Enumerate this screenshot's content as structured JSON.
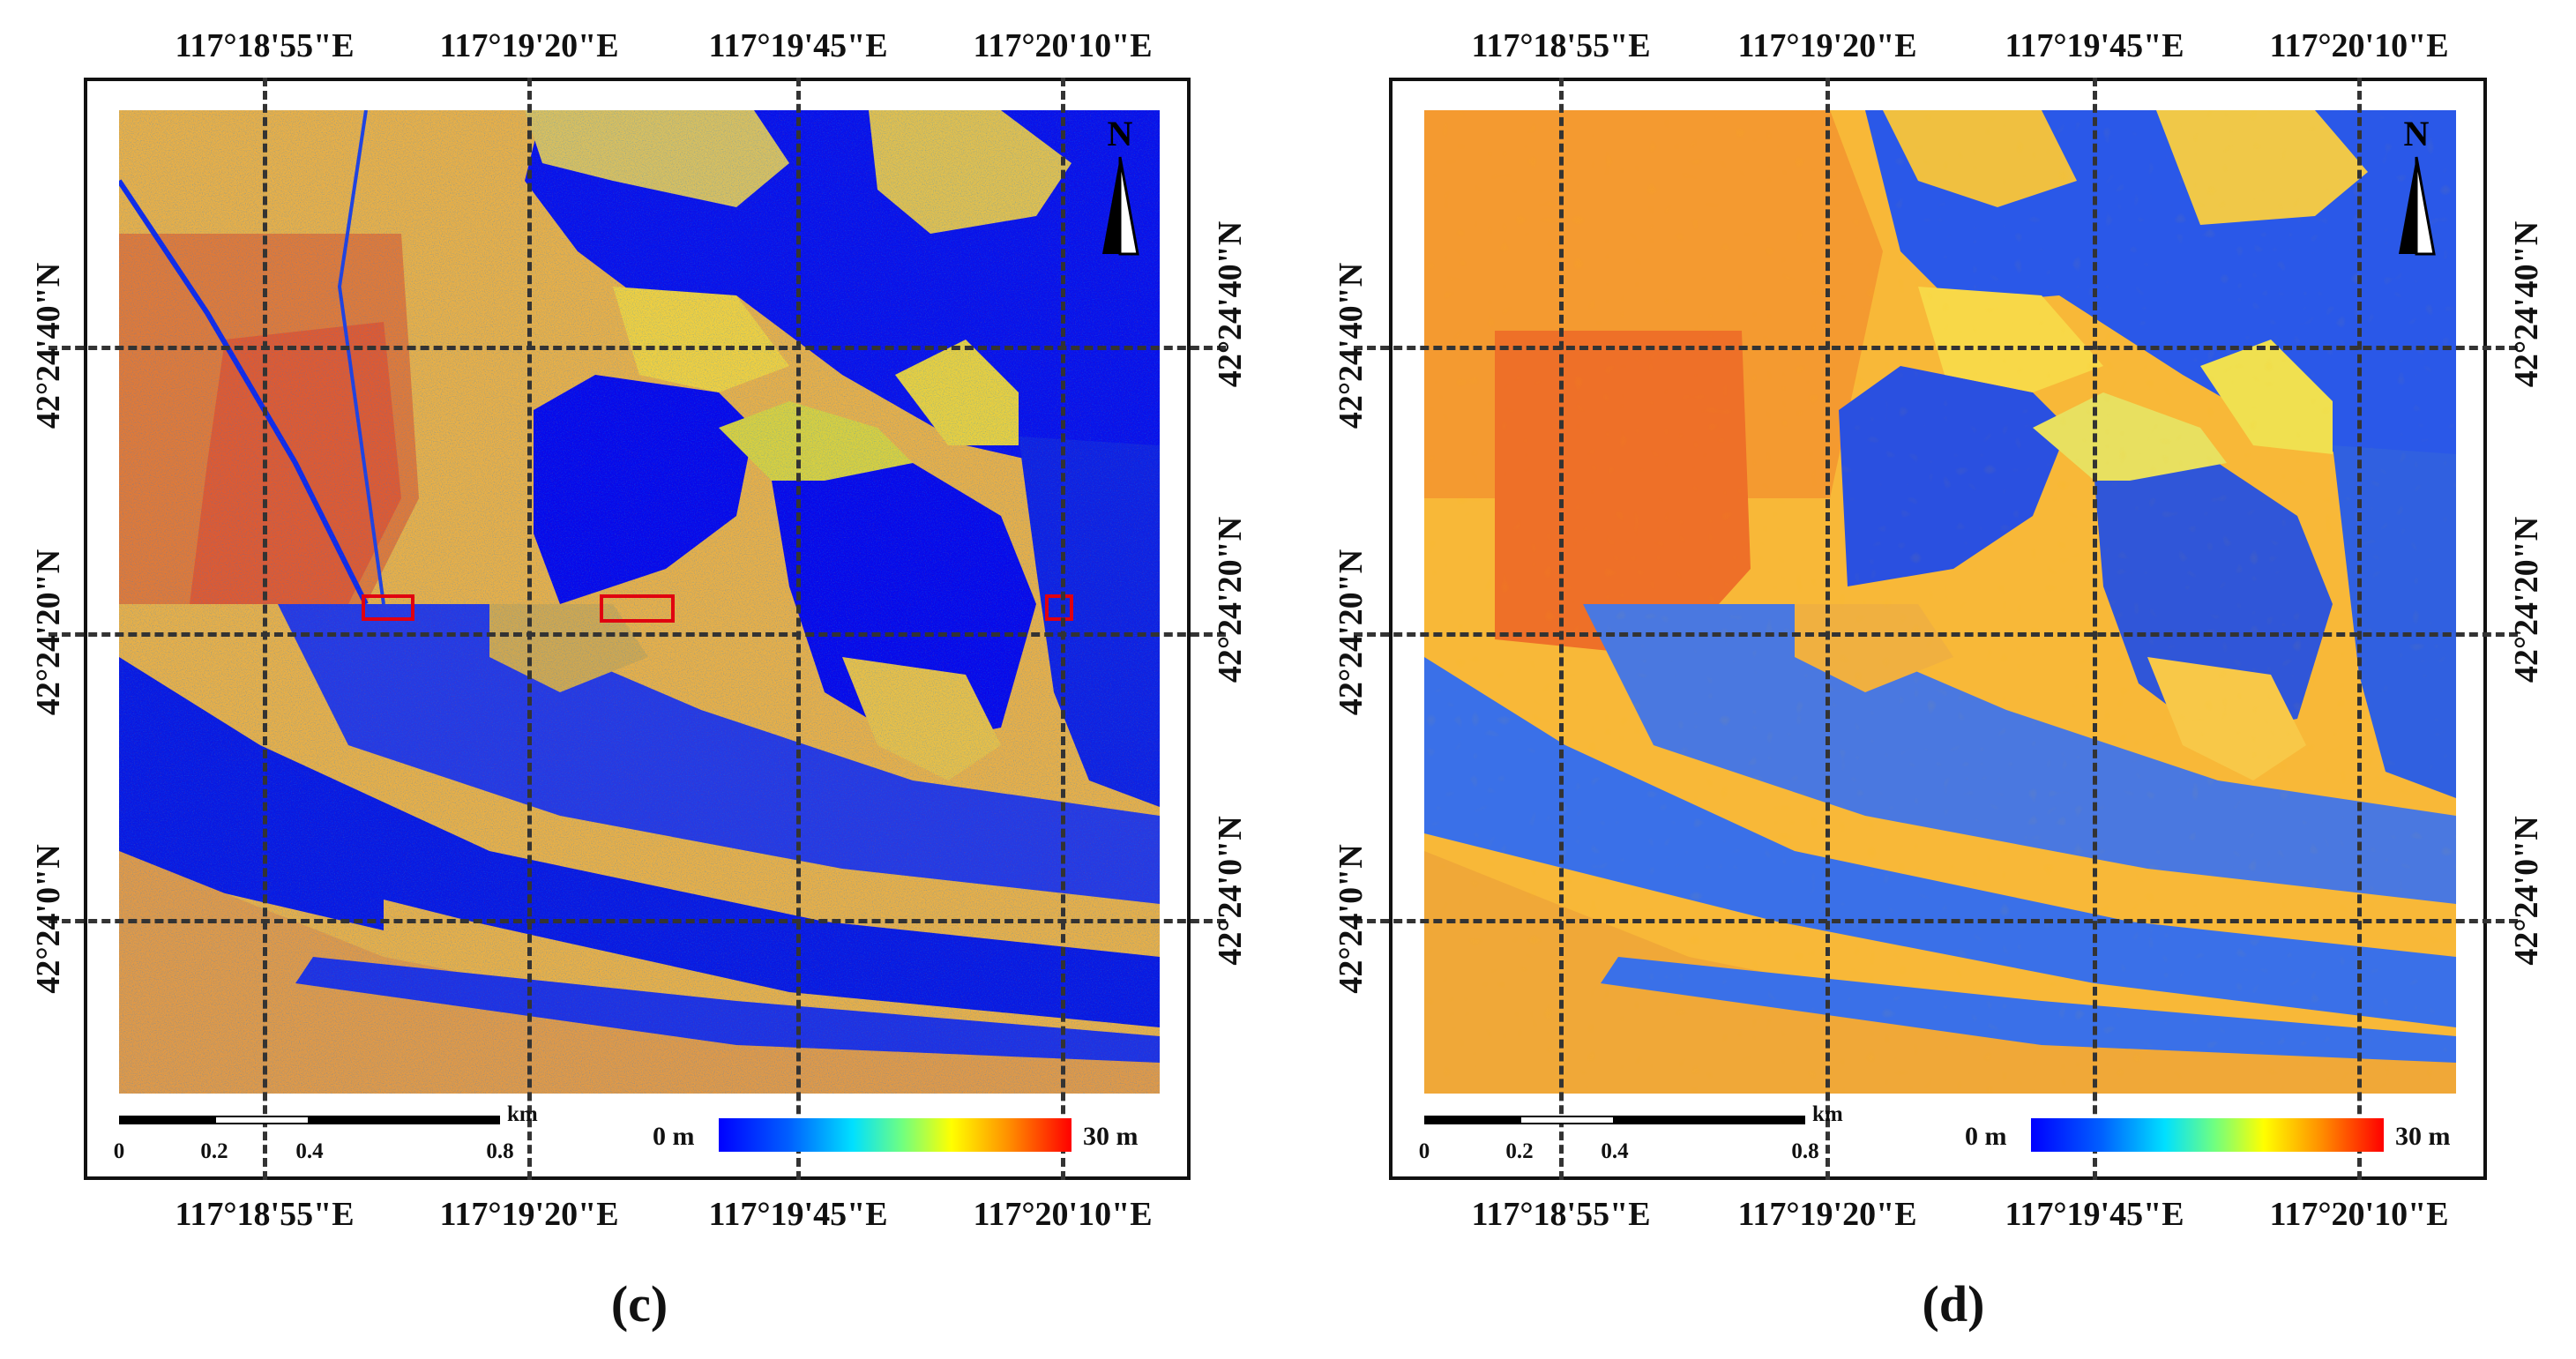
{
  "panels": [
    {
      "id": "c",
      "caption": "(c)",
      "lon_labels": [
        "117°18'55\"E",
        "117°19'20\"E",
        "117°19'45\"E",
        "117°20'10\"E"
      ],
      "lat_labels": [
        "42°24'40\"N",
        "42°24'20\"N",
        "42°24'0\"N"
      ],
      "north_label": "N",
      "scale": {
        "ticks": [
          "0",
          "0.2",
          "0.4",
          "0.8"
        ],
        "unit": "km"
      },
      "legend": {
        "min": "0 m",
        "max": "30 m"
      },
      "highlight_boxes": 3
    },
    {
      "id": "d",
      "caption": "(d)",
      "lon_labels": [
        "117°18'55\"E",
        "117°19'20\"E",
        "117°19'45\"E",
        "117°20'10\"E"
      ],
      "lat_labels": [
        "42°24'40\"N",
        "42°24'20\"N",
        "42°24'0\"N"
      ],
      "north_label": "N",
      "scale": {
        "ticks": [
          "0",
          "0.2",
          "0.4",
          "0.8"
        ],
        "unit": "km"
      },
      "legend": {
        "min": "0 m",
        "max": "30 m"
      }
    }
  ],
  "colors": {
    "low": "#0000ff",
    "mid": "#ffff00",
    "high": "#ff0000",
    "grid": "#333333",
    "highlight": "#e00010"
  }
}
